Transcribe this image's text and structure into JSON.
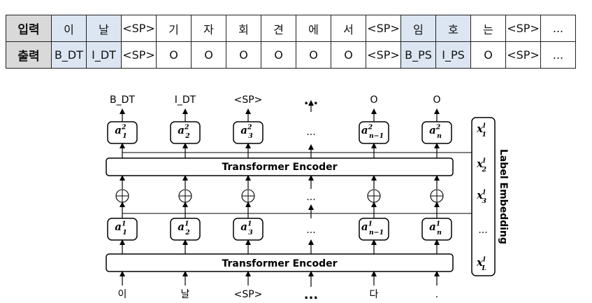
{
  "table": {
    "input_label": "입력",
    "output_label": "출력",
    "input_tokens": [
      "이",
      "날",
      "<SP>",
      "기",
      "자",
      "회",
      "견",
      "에",
      "서",
      "<SP>",
      "임",
      "호",
      "는",
      "<SP>",
      "..."
    ],
    "output_tags": [
      "B_DT",
      "I_DT",
      "<SP>",
      "O",
      "O",
      "O",
      "O",
      "O",
      "O",
      "<SP>",
      "B_PS",
      "I_PS",
      "O",
      "<SP>",
      "..."
    ],
    "highlighted_columns": [
      0,
      1,
      10,
      11
    ],
    "highlight_color": "#dce6f2",
    "header_color": "#d9d9d9"
  },
  "diagram": {
    "output_labels": [
      "B_DT",
      "I_DT",
      "<SP>",
      "...",
      "O",
      "O"
    ],
    "input_labels": [
      "이",
      "날",
      "<SP>",
      "...",
      "다",
      "."
    ],
    "encoder_label": "Transformer Encoder",
    "ellipsis": "...",
    "plus_symbol": "⊕",
    "upper_nodes": [
      {
        "base": "a",
        "sup": "2",
        "sub": "1"
      },
      {
        "base": "a",
        "sup": "2",
        "sub": "2"
      },
      {
        "base": "a",
        "sup": "2",
        "sub": "3"
      },
      null,
      {
        "base": "a",
        "sup": "2",
        "sub": "n−1"
      },
      {
        "base": "a",
        "sup": "2",
        "sub": "n"
      }
    ],
    "lower_nodes": [
      {
        "base": "a",
        "sup": "1",
        "sub": "1"
      },
      {
        "base": "a",
        "sup": "1",
        "sub": "2"
      },
      {
        "base": "a",
        "sup": "1",
        "sub": "3"
      },
      null,
      {
        "base": "a",
        "sup": "1",
        "sub": "n−1"
      },
      {
        "base": "a",
        "sup": "1",
        "sub": "n"
      }
    ],
    "label_embedding": {
      "title": "Label Embedding",
      "items": [
        {
          "base": "x",
          "sup": "l",
          "sub": "1"
        },
        {
          "base": "x",
          "sup": "l",
          "sub": "2"
        },
        {
          "base": "x",
          "sup": "l",
          "sub": "3"
        },
        {
          "text": "..."
        },
        {
          "base": "x",
          "sup": "l",
          "sub": "L"
        }
      ]
    }
  }
}
